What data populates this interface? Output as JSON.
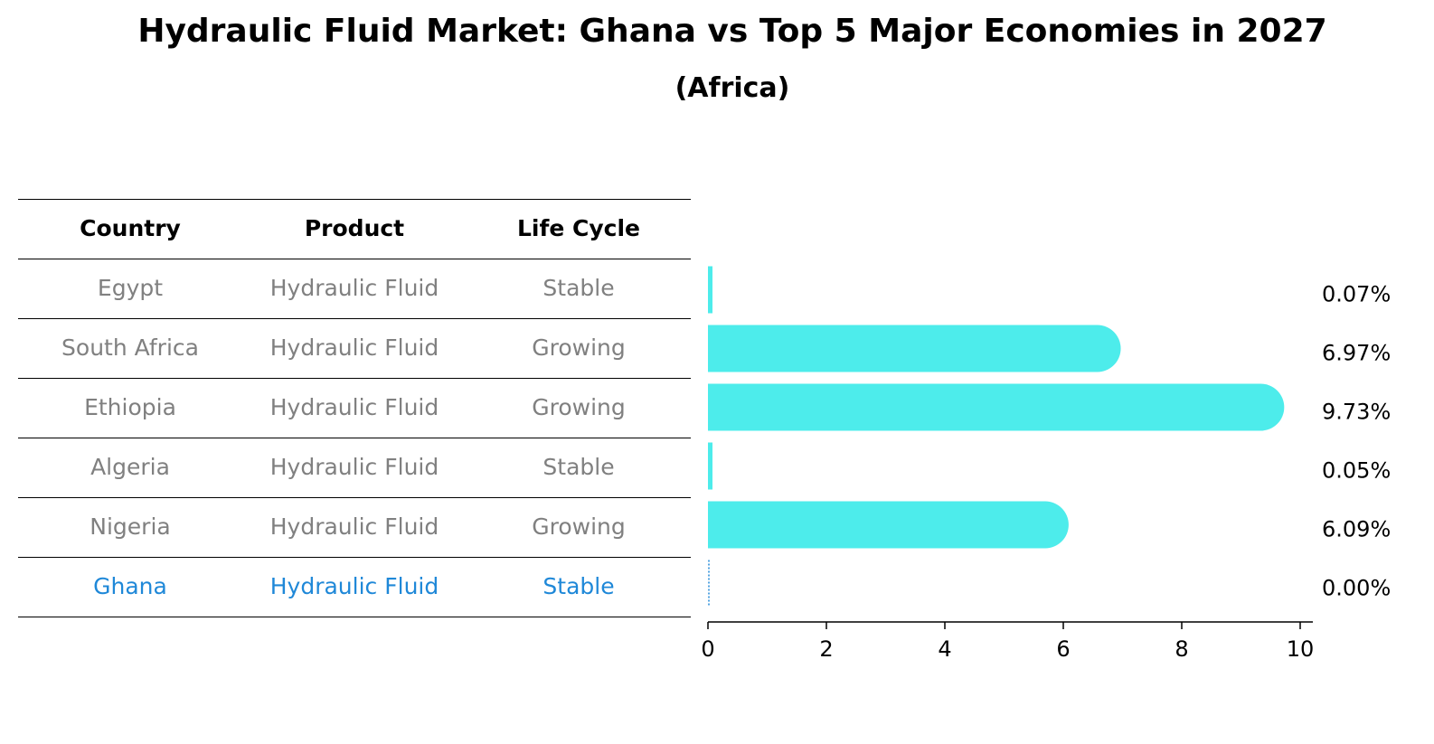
{
  "title": "Hydraulic Fluid Market: Ghana vs Top 5 Major Economies in 2027",
  "subtitle": "(Africa)",
  "table": {
    "headers": [
      "Country",
      "Product",
      "Life Cycle"
    ],
    "rows": [
      {
        "country": "Egypt",
        "product": "Hydraulic Fluid",
        "life_cycle": "Stable"
      },
      {
        "country": "South Africa",
        "product": "Hydraulic Fluid",
        "life_cycle": "Growing"
      },
      {
        "country": "Ethiopia",
        "product": "Hydraulic Fluid",
        "life_cycle": "Growing"
      },
      {
        "country": "Algeria",
        "product": "Hydraulic Fluid",
        "life_cycle": "Stable"
      },
      {
        "country": "Nigeria",
        "product": "Hydraulic Fluid",
        "life_cycle": "Growing"
      },
      {
        "country": "Ghana",
        "product": "Hydraulic Fluid",
        "life_cycle": "Stable"
      }
    ],
    "highlight_row": "Ghana"
  },
  "colors": {
    "bar": "#4deceb",
    "highlight": "#1f88d8",
    "muted_text": "#808080",
    "text": "#000000"
  },
  "chart_data": {
    "type": "bar",
    "orientation": "horizontal",
    "categories": [
      "Egypt",
      "South Africa",
      "Ethiopia",
      "Algeria",
      "Nigeria",
      "Ghana"
    ],
    "values": [
      0.07,
      6.97,
      9.73,
      0.05,
      6.09,
      0.0
    ],
    "value_labels": [
      "0.07%",
      "6.97%",
      "9.73%",
      "0.05%",
      "6.09%",
      "0.00%"
    ],
    "xlim": [
      0,
      10
    ],
    "xticks": [
      0,
      2,
      4,
      6,
      8,
      10
    ],
    "xtick_labels": [
      "0",
      "2",
      "4",
      "6",
      "8",
      "10"
    ],
    "grid": false,
    "legend": "none"
  }
}
